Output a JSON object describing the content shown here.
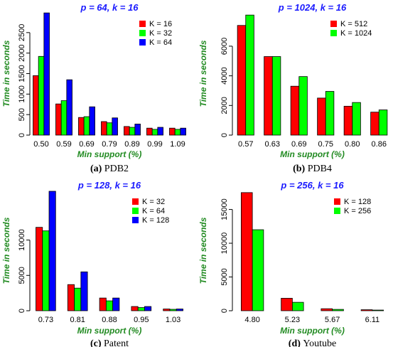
{
  "chart_data": [
    {
      "type": "bar",
      "title": "p = 64, k = 16",
      "caption_label": "(a)",
      "caption_text": "PDB2",
      "xlabel": "Min support (%)",
      "ylabel": "Time in seconds",
      "categories": [
        "0.50",
        "0.59",
        "0.69",
        "0.79",
        "0.89",
        "0.99",
        "1.09"
      ],
      "yticks": [
        0,
        500,
        1000,
        1500,
        2000,
        2500
      ],
      "ylim": [
        0,
        3000
      ],
      "legend_position": "top-right",
      "series": [
        {
          "name": "K = 16",
          "color": "#ff0000",
          "values": [
            1450,
            760,
            430,
            330,
            210,
            170,
            170
          ]
        },
        {
          "name": "K = 32",
          "color": "#00ff00",
          "values": [
            1920,
            840,
            450,
            300,
            190,
            140,
            140
          ]
        },
        {
          "name": "K = 64",
          "color": "#0000ff",
          "values": [
            2980,
            1350,
            690,
            420,
            270,
            190,
            170
          ]
        }
      ]
    },
    {
      "type": "bar",
      "title": "p = 1024, k = 16",
      "caption_label": "(b)",
      "caption_text": "PDB4",
      "xlabel": "Min support (%)",
      "ylabel": "Time in seconds",
      "categories": [
        "0.57",
        "0.63",
        "0.69",
        "0.75",
        "0.80",
        "0.86"
      ],
      "yticks": [
        0,
        2000,
        4000,
        6000
      ],
      "ylim": [
        0,
        8300
      ],
      "legend_position": "top-right",
      "series": [
        {
          "name": "K = 512",
          "color": "#ff0000",
          "values": [
            7400,
            5300,
            3300,
            2500,
            1950,
            1550
          ]
        },
        {
          "name": "K = 1024",
          "color": "#00ff00",
          "values": [
            8100,
            5300,
            3950,
            2950,
            2200,
            1700
          ]
        }
      ]
    },
    {
      "type": "bar",
      "title": "p = 128, k = 16",
      "caption_label": "(c)",
      "caption_text": "Patent",
      "xlabel": "Min support (%)",
      "ylabel": "Time in seconds",
      "categories": [
        "0.73",
        "0.81",
        "0.88",
        "0.95",
        "1.03"
      ],
      "yticks": [
        0,
        5000,
        10000
      ],
      "ylim": [
        0,
        17000
      ],
      "legend_position": "top-right",
      "series": [
        {
          "name": "K = 32",
          "color": "#ff0000",
          "values": [
            11800,
            3700,
            1800,
            600,
            250
          ]
        },
        {
          "name": "K = 64",
          "color": "#00ff00",
          "values": [
            11300,
            3200,
            1400,
            450,
            200
          ]
        },
        {
          "name": "K = 128",
          "color": "#0000ff",
          "values": [
            16900,
            5500,
            1800,
            600,
            250
          ]
        }
      ]
    },
    {
      "type": "bar",
      "title": "p = 256, k = 16",
      "caption_label": "(d)",
      "caption_text": "Youtube",
      "xlabel": "Min support (%)",
      "ylabel": "Time in seconds",
      "categories": [
        "4.80",
        "5.23",
        "5.67",
        "6.11"
      ],
      "yticks": [
        0,
        5000,
        10000,
        15000
      ],
      "ylim": [
        0,
        17800
      ],
      "legend_position": "top-right",
      "series": [
        {
          "name": "K = 128",
          "color": "#ff0000",
          "values": [
            17500,
            1850,
            300,
            150
          ]
        },
        {
          "name": "K = 256",
          "color": "#00ff00",
          "values": [
            12000,
            1250,
            200,
            100
          ]
        }
      ]
    }
  ]
}
